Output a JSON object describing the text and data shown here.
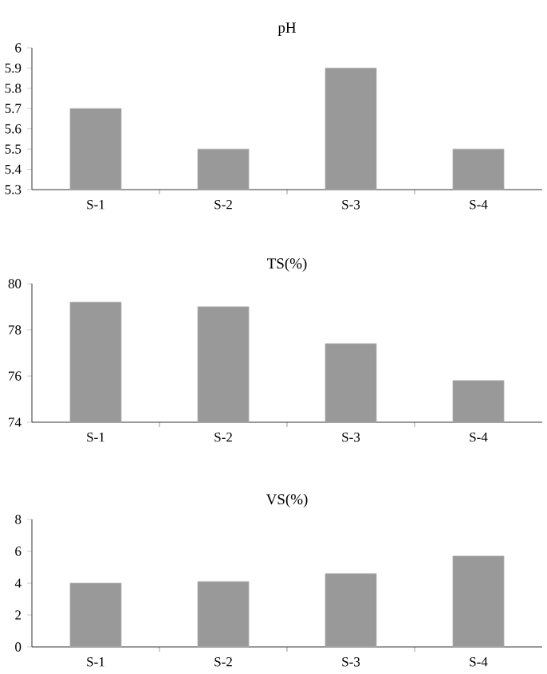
{
  "chart_data": [
    {
      "type": "bar",
      "title": "pH",
      "categories": [
        "S-1",
        "S-2",
        "S-3",
        "S-4"
      ],
      "values": [
        5.7,
        5.5,
        5.9,
        5.5
      ],
      "color": "#999999",
      "ylim": [
        5.3,
        6
      ],
      "yticks": [
        5.3,
        5.4,
        5.5,
        5.6,
        5.7,
        5.8,
        5.9,
        6
      ]
    },
    {
      "type": "bar",
      "title": "TS(%)",
      "categories": [
        "S-1",
        "S-2",
        "S-3",
        "S-4"
      ],
      "values": [
        79.2,
        79.0,
        77.4,
        75.8
      ],
      "color": "#999999",
      "ylim": [
        74,
        80
      ],
      "yticks": [
        74,
        76,
        78,
        80
      ]
    },
    {
      "type": "bar",
      "title": "VS(%)",
      "categories": [
        "S-1",
        "S-2",
        "S-3",
        "S-4"
      ],
      "values": [
        4.0,
        4.1,
        4.6,
        5.7
      ],
      "color": "#999999",
      "ylim": [
        0,
        8
      ],
      "yticks": [
        0,
        2,
        4,
        6,
        8
      ]
    }
  ]
}
